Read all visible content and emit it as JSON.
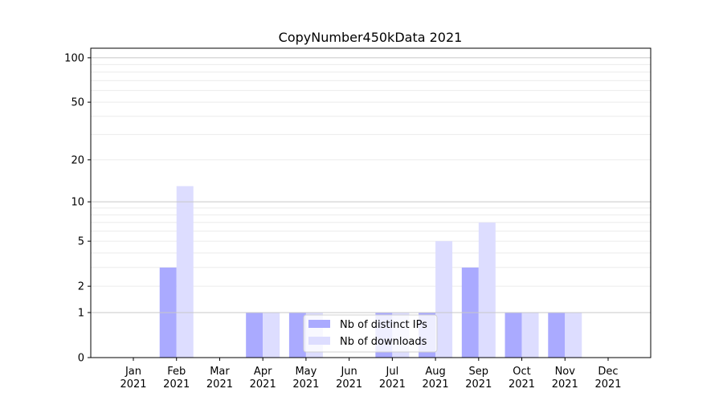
{
  "chart_data": {
    "type": "bar",
    "title": "CopyNumber450kData 2021",
    "xlabel": "",
    "ylabel": "",
    "yscale": "log(1+y)",
    "ylim": [
      0,
      116
    ],
    "yticks": [
      0,
      1,
      2,
      5,
      10,
      20,
      50,
      100
    ],
    "grid": true,
    "legend_position": "bottom-center",
    "categories": [
      "Jan\n2021",
      "Feb\n2021",
      "Mar\n2021",
      "Apr\n2021",
      "May\n2021",
      "Jun\n2021",
      "Jul\n2021",
      "Aug\n2021",
      "Sep\n2021",
      "Oct\n2021",
      "Nov\n2021",
      "Dec\n2021"
    ],
    "series": [
      {
        "name": "Nb of distinct IPs",
        "color": "#aaaaff",
        "values": [
          0,
          3,
          0,
          1,
          1,
          0,
          1,
          1,
          3,
          1,
          1,
          0
        ]
      },
      {
        "name": "Nb of downloads",
        "color": "#ddddff",
        "values": [
          0,
          13,
          0,
          1,
          1,
          0,
          1,
          5,
          7,
          1,
          1,
          0
        ]
      }
    ]
  }
}
